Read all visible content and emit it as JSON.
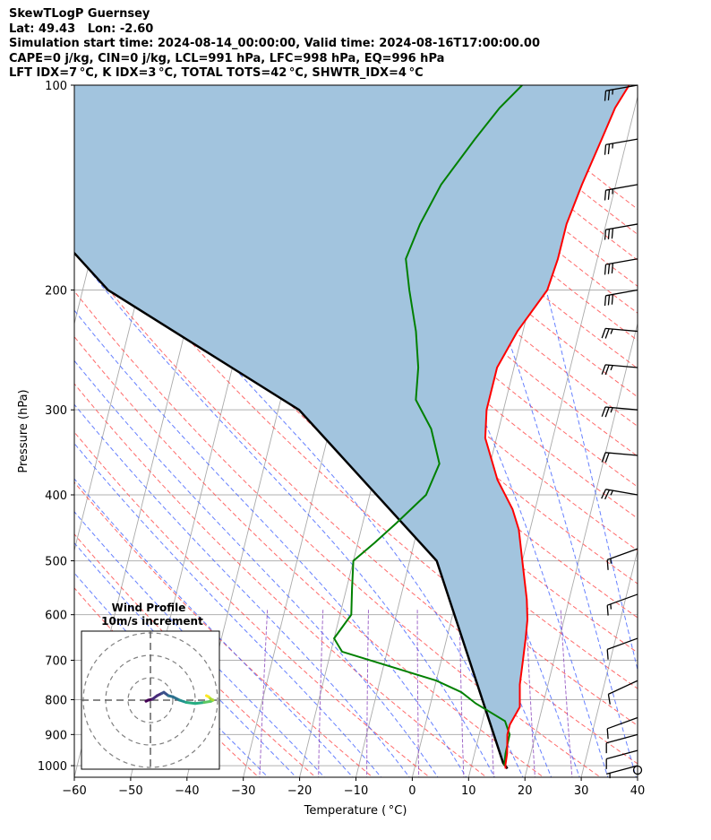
{
  "header": {
    "line1": "SkewTLogP Guernsey",
    "line2": "Lat: 49.43   Lon: -2.60",
    "line3": "Simulation start time: 2024-08-14_00:00:00, Valid time: 2024-08-16T17:00:00.00",
    "line4": "CAPE=0 j/kg, CIN=0 j/kg, LCL=991 hPa, LFC=998 hPa, EQ=996 hPa",
    "line5": "LFT IDX=7 °C, K IDX=3 °C, TOTAL TOTS=42 °C, SHWTR_IDX=4 °C"
  },
  "chart_data": {
    "type": "line",
    "xlabel": "Temperature ( °C)",
    "ylabel": "Pressure (hPa)",
    "xlim": [
      -60,
      40
    ],
    "ylim": [
      1040,
      100
    ],
    "y_scale": "log",
    "x_ticks": [
      "−60",
      "−50",
      "−40",
      "−30",
      "−20",
      "−10",
      "0",
      "10",
      "20",
      "30",
      "40"
    ],
    "y_ticks": [
      "100",
      "200",
      "300",
      "400",
      "500",
      "600",
      "700",
      "800",
      "900",
      "1000"
    ],
    "y_tick_values": [
      100,
      200,
      300,
      400,
      500,
      600,
      700,
      800,
      900,
      1000
    ],
    "skew": "30 °C per log-decade",
    "grid": true,
    "colors": {
      "temperature": "#ff0000",
      "dewpoint": "#008000",
      "parcel": "#000000",
      "cape_fill": "#a2c4de",
      "dry_adiabats": "#ff5050",
      "moist_adiabats": "#4060ff",
      "mixing_ratio": "#9050c0",
      "isotherms": "#aaaaaa"
    },
    "series": [
      {
        "role": "temperature",
        "points": [
          [
            16.2,
            1010
          ],
          [
            16,
            1000
          ],
          [
            15.8,
            960
          ],
          [
            15,
            900
          ],
          [
            15,
            870
          ],
          [
            16,
            820
          ],
          [
            15,
            760
          ],
          [
            14.5,
            700
          ],
          [
            14,
            650
          ],
          [
            13.5,
            610
          ],
          [
            12.5,
            570
          ],
          [
            10,
            500
          ],
          [
            8,
            450
          ],
          [
            6,
            420
          ],
          [
            2,
            380
          ],
          [
            -2,
            330
          ],
          [
            -3,
            300
          ],
          [
            -3,
            260
          ],
          [
            -1,
            230
          ],
          [
            2.5,
            200
          ],
          [
            3,
            180
          ],
          [
            3,
            160
          ],
          [
            4,
            140
          ],
          [
            5.5,
            120
          ],
          [
            6.5,
            108
          ],
          [
            8,
            100
          ]
        ]
      },
      {
        "role": "dewpoint",
        "points": [
          [
            15.8,
            1000
          ],
          [
            15.5,
            960
          ],
          [
            15.4,
            900
          ],
          [
            14,
            860
          ],
          [
            8,
            810
          ],
          [
            5,
            780
          ],
          [
            0,
            750
          ],
          [
            -18,
            680
          ],
          [
            -20,
            650
          ],
          [
            -18,
            600
          ],
          [
            -19,
            550
          ],
          [
            -20,
            500
          ],
          [
            -17,
            470
          ],
          [
            -14,
            440
          ],
          [
            -10,
            400
          ],
          [
            -9,
            360
          ],
          [
            -12,
            320
          ],
          [
            -16,
            290
          ],
          [
            -17,
            260
          ],
          [
            -19,
            230
          ],
          [
            -22,
            200
          ],
          [
            -24,
            180
          ],
          [
            -23,
            160
          ],
          [
            -21,
            140
          ],
          [
            -17,
            120
          ],
          [
            -14,
            108
          ],
          [
            -11,
            100
          ]
        ]
      },
      {
        "role": "parcel",
        "points": [
          [
            16.5,
            1010
          ],
          [
            16,
            1000
          ],
          [
            15.5,
            991
          ],
          [
            -5.2,
            500
          ],
          [
            -36.3,
            300
          ],
          [
            -75.5,
            200
          ],
          [
            -93,
            150
          ],
          [
            -104,
            120
          ],
          [
            -109,
            110
          ],
          [
            -115,
            100
          ]
        ]
      }
    ],
    "wind_barbs": [
      {
        "p": 100,
        "dir": 260,
        "speed": 25
      },
      {
        "p": 120,
        "dir": 260,
        "speed": 25
      },
      {
        "p": 140,
        "dir": 260,
        "speed": 25
      },
      {
        "p": 160,
        "dir": 260,
        "speed": 30
      },
      {
        "p": 180,
        "dir": 260,
        "speed": 30
      },
      {
        "p": 200,
        "dir": 260,
        "speed": 30
      },
      {
        "p": 230,
        "dir": 275,
        "speed": 25
      },
      {
        "p": 260,
        "dir": 275,
        "speed": 25
      },
      {
        "p": 300,
        "dir": 275,
        "speed": 25
      },
      {
        "p": 350,
        "dir": 275,
        "speed": 20
      },
      {
        "p": 400,
        "dir": 280,
        "speed": 25
      },
      {
        "p": 480,
        "dir": 250,
        "speed": 15
      },
      {
        "p": 560,
        "dir": 250,
        "speed": 15
      },
      {
        "p": 650,
        "dir": 250,
        "speed": 10
      },
      {
        "p": 750,
        "dir": 245,
        "speed": 10
      },
      {
        "p": 850,
        "dir": 250,
        "speed": 10
      },
      {
        "p": 900,
        "dir": 255,
        "speed": 10
      },
      {
        "p": 950,
        "dir": 255,
        "speed": 10
      },
      {
        "p": 1000,
        "dir": 255,
        "speed": 5
      },
      {
        "p": 1015,
        "calm": true
      }
    ],
    "hodograph": {
      "title": "Wind Profile",
      "subtitle": "10m/s increment",
      "rings_ms": [
        10,
        20,
        30
      ],
      "points_ms": [
        [
          -2,
          -0.5
        ],
        [
          -1,
          0
        ],
        [
          1,
          0.5
        ],
        [
          3,
          2
        ],
        [
          5,
          3
        ],
        [
          6,
          3.5
        ],
        [
          8,
          2
        ],
        [
          10,
          1.5
        ],
        [
          13,
          0
        ],
        [
          16,
          -1
        ],
        [
          20,
          -1.5
        ],
        [
          24,
          -1
        ],
        [
          27,
          -0.5
        ],
        [
          28,
          0
        ],
        [
          27,
          0.5
        ],
        [
          26,
          1.5
        ],
        [
          25,
          2
        ]
      ]
    }
  }
}
